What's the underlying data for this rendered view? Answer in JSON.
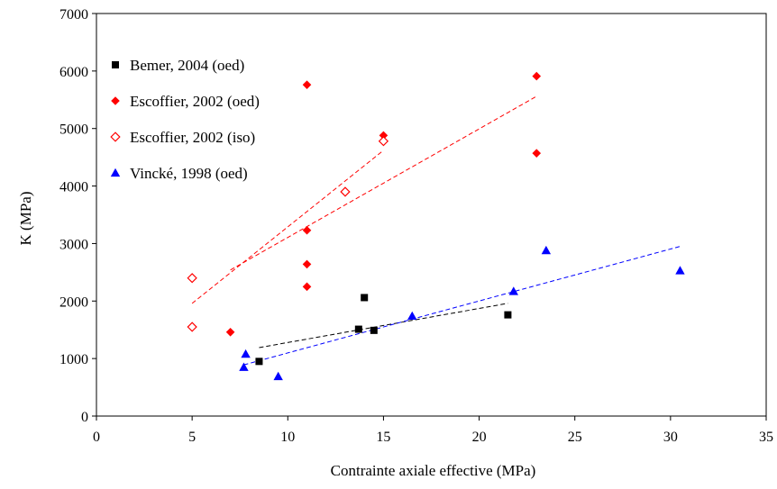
{
  "chart_data": {
    "type": "scatter",
    "title": "",
    "xlabel": "Contrainte axiale effective (MPa)",
    "ylabel": "K (MPa)",
    "xlim": [
      0,
      35
    ],
    "ylim": [
      0,
      7000
    ],
    "xticks": [
      0,
      5,
      10,
      15,
      20,
      25,
      30,
      35
    ],
    "yticks": [
      0,
      1000,
      2000,
      3000,
      4000,
      5000,
      6000,
      7000
    ],
    "grid": false,
    "legend_position": "top-left",
    "series": [
      {
        "name": "Bemer, 2004 (oed)",
        "marker": "square",
        "filled": true,
        "color": "#000000",
        "points": [
          [
            8.5,
            950
          ],
          [
            13.7,
            1510
          ],
          [
            14.0,
            2060
          ],
          [
            14.5,
            1490
          ],
          [
            21.5,
            1760
          ]
        ],
        "trendline": [
          [
            8.5,
            1190
          ],
          [
            21.5,
            1960
          ]
        ]
      },
      {
        "name": "Escoffier, 2002 (oed)",
        "marker": "diamond",
        "filled": true,
        "color": "#ff0000",
        "points": [
          [
            7.0,
            1460
          ],
          [
            11.0,
            5760
          ],
          [
            11.0,
            3230
          ],
          [
            11.0,
            2640
          ],
          [
            11.0,
            2250
          ],
          [
            15.0,
            4880
          ],
          [
            23.0,
            5910
          ],
          [
            23.0,
            4570
          ]
        ],
        "trendline": [
          [
            7.0,
            2540
          ],
          [
            23.0,
            5560
          ]
        ]
      },
      {
        "name": "Escoffier, 2002 (iso)",
        "marker": "diamond",
        "filled": false,
        "color": "#ff0000",
        "points": [
          [
            5.0,
            2400
          ],
          [
            5.0,
            1550
          ],
          [
            13.0,
            3900
          ],
          [
            15.0,
            4780
          ]
        ],
        "trendline": [
          [
            5.0,
            1960
          ],
          [
            15.0,
            4620
          ]
        ]
      },
      {
        "name": "Vincké, 1998 (oed)",
        "marker": "triangle",
        "filled": true,
        "color": "#0000ff",
        "points": [
          [
            7.8,
            1080
          ],
          [
            7.7,
            850
          ],
          [
            9.5,
            690
          ],
          [
            16.5,
            1740
          ],
          [
            21.8,
            2170
          ],
          [
            23.5,
            2880
          ],
          [
            30.5,
            2530
          ]
        ],
        "trendline": [
          [
            7.7,
            890
          ],
          [
            30.5,
            2950
          ]
        ]
      }
    ]
  }
}
